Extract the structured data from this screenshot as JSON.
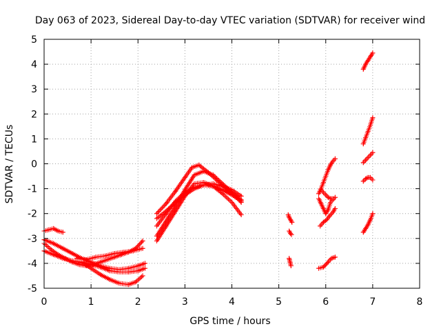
{
  "chart_data": {
    "type": "scatter",
    "title": "Day 063 of 2023, Sidereal Day-to-day VTEC variation (SDTVAR) for receiver wind",
    "xlabel": "GPS time / hours",
    "ylabel": "SDTVAR / TECUs",
    "xlim": [
      0,
      8
    ],
    "ylim": [
      -5,
      5
    ],
    "xticks": [
      "0",
      "1",
      "2",
      "3",
      "4",
      "5",
      "6",
      "7",
      "8"
    ],
    "yticks": [
      "-5",
      "-4",
      "-3",
      "-2",
      "-1",
      "0",
      "1",
      "2",
      "3",
      "4",
      "5"
    ],
    "grid": true,
    "marker": "+",
    "color": "#ff0000",
    "series": [
      {
        "name": "segment-1",
        "x": [
          0.0,
          0.15,
          0.3,
          0.45,
          0.6,
          0.75,
          0.9,
          1.05,
          1.2,
          1.35,
          1.5,
          1.65,
          1.8,
          1.95,
          2.1
        ],
        "y": [
          -3.2,
          -3.45,
          -3.65,
          -3.8,
          -3.95,
          -4.05,
          -4.1,
          -4.05,
          -3.95,
          -3.85,
          -3.75,
          -3.65,
          -3.55,
          -3.4,
          -3.1
        ]
      },
      {
        "name": "segment-2",
        "x": [
          0.0,
          0.2,
          0.4,
          0.6,
          0.8,
          1.0,
          1.2,
          1.4,
          1.6,
          1.8,
          2.0,
          2.15
        ],
        "y": [
          -3.05,
          -3.2,
          -3.4,
          -3.6,
          -3.8,
          -3.95,
          -4.1,
          -4.2,
          -4.25,
          -4.2,
          -4.1,
          -4.0
        ]
      },
      {
        "name": "segment-3",
        "x": [
          0.0,
          0.2,
          0.4,
          0.6,
          0.8,
          1.0,
          1.2,
          1.4,
          1.6,
          1.8,
          2.0,
          2.15
        ],
        "y": [
          -3.5,
          -3.65,
          -3.8,
          -3.9,
          -3.95,
          -4.05,
          -4.15,
          -4.3,
          -4.35,
          -4.35,
          -4.3,
          -4.2
        ]
      },
      {
        "name": "segment-4",
        "x": [
          0.8,
          1.0,
          1.2,
          1.4,
          1.6,
          1.8,
          1.95,
          2.1
        ],
        "y": [
          -3.95,
          -4.2,
          -4.45,
          -4.65,
          -4.8,
          -4.85,
          -4.75,
          -4.5
        ]
      },
      {
        "name": "segment-5",
        "x": [
          0.0,
          0.1,
          0.2,
          0.3,
          0.4
        ],
        "y": [
          -2.7,
          -2.65,
          -2.6,
          -2.7,
          -2.75
        ]
      },
      {
        "name": "segment-6",
        "x": [
          0.7,
          0.9,
          1.1,
          1.3,
          1.5,
          1.7,
          1.9,
          2.1
        ],
        "y": [
          -3.8,
          -3.85,
          -3.75,
          -3.7,
          -3.6,
          -3.55,
          -3.5,
          -3.4
        ]
      },
      {
        "name": "segment-7",
        "x": [
          2.4,
          2.6,
          2.8,
          3.0,
          3.2,
          3.4,
          3.6,
          3.8,
          4.0,
          4.2
        ],
        "y": [
          -3.1,
          -2.5,
          -1.9,
          -1.3,
          -0.8,
          -0.75,
          -0.9,
          -1.2,
          -1.55,
          -2.05
        ]
      },
      {
        "name": "segment-8",
        "x": [
          2.4,
          2.6,
          2.8,
          3.0,
          3.2,
          3.4,
          3.6,
          3.8,
          4.0,
          4.2
        ],
        "y": [
          -2.9,
          -2.3,
          -1.7,
          -1.05,
          -0.45,
          -0.3,
          -0.45,
          -0.8,
          -1.15,
          -1.45
        ]
      },
      {
        "name": "segment-9",
        "x": [
          2.4,
          2.6,
          2.8,
          3.0,
          3.15,
          3.3,
          3.5,
          3.7,
          3.9,
          4.1,
          4.2
        ],
        "y": [
          -2.0,
          -1.6,
          -1.1,
          -0.55,
          -0.15,
          -0.05,
          -0.35,
          -0.7,
          -1.05,
          -1.35,
          -1.55
        ]
      },
      {
        "name": "segment-10",
        "x": [
          2.4,
          2.6,
          2.8,
          3.0,
          3.2,
          3.4,
          3.6,
          3.8,
          4.0,
          4.2
        ],
        "y": [
          -2.2,
          -1.9,
          -1.55,
          -1.25,
          -1.0,
          -0.85,
          -0.8,
          -0.9,
          -1.05,
          -1.3
        ]
      },
      {
        "name": "segment-11",
        "x": [
          2.4,
          2.6,
          2.8,
          3.0,
          3.2,
          3.4,
          3.6,
          3.8,
          4.0,
          4.2
        ],
        "y": [
          -2.5,
          -2.0,
          -1.5,
          -1.15,
          -0.95,
          -0.85,
          -0.9,
          -1.05,
          -1.25,
          -1.5
        ]
      },
      {
        "name": "segment-12",
        "x": [
          5.2,
          5.22,
          5.25,
          5.28
        ],
        "y": [
          -2.05,
          -2.15,
          -2.25,
          -2.35
        ]
      },
      {
        "name": "segment-13",
        "x": [
          5.22,
          5.25,
          5.27
        ],
        "y": [
          -2.7,
          -2.8,
          -2.85
        ]
      },
      {
        "name": "segment-14",
        "x": [
          5.22,
          5.24,
          5.26
        ],
        "y": [
          -3.8,
          -3.95,
          -4.1
        ]
      },
      {
        "name": "segment-15",
        "x": [
          5.85,
          5.9,
          5.95,
          6.0,
          6.05,
          6.1,
          6.15,
          6.2
        ],
        "y": [
          -1.2,
          -1.0,
          -0.75,
          -0.5,
          -0.25,
          -0.05,
          0.1,
          0.2
        ]
      },
      {
        "name": "segment-16",
        "x": [
          5.85,
          5.9,
          5.95,
          6.0,
          6.05,
          6.1,
          6.15,
          6.2
        ],
        "y": [
          -1.4,
          -1.6,
          -1.8,
          -2.0,
          -1.85,
          -1.55,
          -1.45,
          -1.35
        ]
      },
      {
        "name": "segment-17",
        "x": [
          5.88,
          5.95,
          6.02,
          6.08,
          6.15,
          6.2
        ],
        "y": [
          -2.5,
          -2.35,
          -2.25,
          -2.1,
          -1.95,
          -1.8
        ]
      },
      {
        "name": "segment-18",
        "x": [
          5.85,
          5.95,
          6.05,
          6.12,
          6.2
        ],
        "y": [
          -4.2,
          -4.15,
          -3.95,
          -3.8,
          -3.75
        ]
      },
      {
        "name": "segment-19",
        "x": [
          5.9,
          5.95,
          6.0,
          6.05,
          6.1,
          6.15
        ],
        "y": [
          -1.05,
          -1.15,
          -1.25,
          -1.35,
          -1.4,
          -1.4
        ]
      },
      {
        "name": "segment-20",
        "x": [
          6.8,
          6.85,
          6.9,
          6.95,
          7.0
        ],
        "y": [
          3.8,
          4.0,
          4.15,
          4.3,
          4.45
        ]
      },
      {
        "name": "segment-21",
        "x": [
          6.8,
          6.85,
          6.9,
          6.95,
          7.0
        ],
        "y": [
          0.8,
          1.05,
          1.3,
          1.55,
          1.85
        ]
      },
      {
        "name": "segment-22",
        "x": [
          6.8,
          6.85,
          6.9,
          6.95,
          7.0
        ],
        "y": [
          0.05,
          0.15,
          0.25,
          0.35,
          0.45
        ]
      },
      {
        "name": "segment-23",
        "x": [
          6.8,
          6.85,
          6.9,
          6.95,
          7.0
        ],
        "y": [
          -0.7,
          -0.6,
          -0.55,
          -0.55,
          -0.65
        ]
      },
      {
        "name": "segment-24",
        "x": [
          6.8,
          6.85,
          6.9,
          6.95,
          7.0
        ],
        "y": [
          -2.75,
          -2.6,
          -2.45,
          -2.25,
          -2.0
        ]
      }
    ]
  }
}
